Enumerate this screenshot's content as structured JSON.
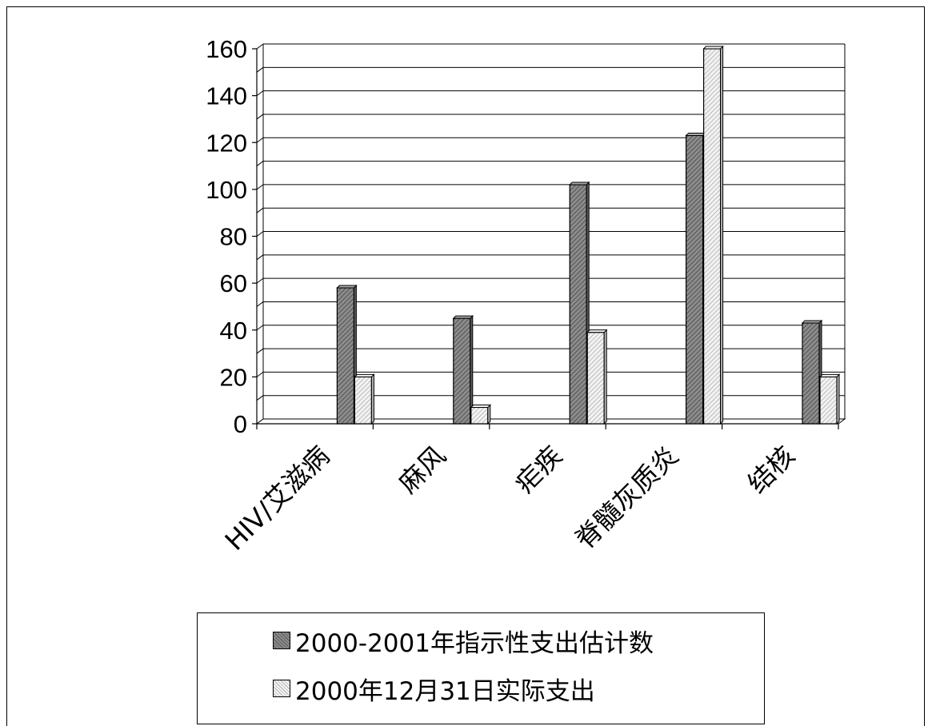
{
  "chart_data": {
    "type": "bar",
    "categories": [
      "HIV/艾滋病",
      "麻风",
      "疟疾",
      "脊髓灰质炎",
      "结核"
    ],
    "series": [
      {
        "name": "2000-2001年指示性支出估计数",
        "values": [
          58,
          45,
          102,
          123,
          43
        ]
      },
      {
        "name": "2000年12月31日实际支出",
        "values": [
          20,
          7,
          39,
          160,
          20
        ]
      }
    ],
    "title": "",
    "xlabel": "",
    "ylabel": "",
    "ylim": [
      0,
      160
    ],
    "yticks": [
      "0",
      "20",
      "40",
      "60",
      "80",
      "100",
      "120",
      "140",
      "160"
    ],
    "grid": true,
    "style": "3d-clustered-column",
    "legend_position": "bottom"
  },
  "colors": {
    "series1_fill": "#8c8c8c",
    "series2_fill": "#e6e6e6",
    "grid": "#000000"
  }
}
